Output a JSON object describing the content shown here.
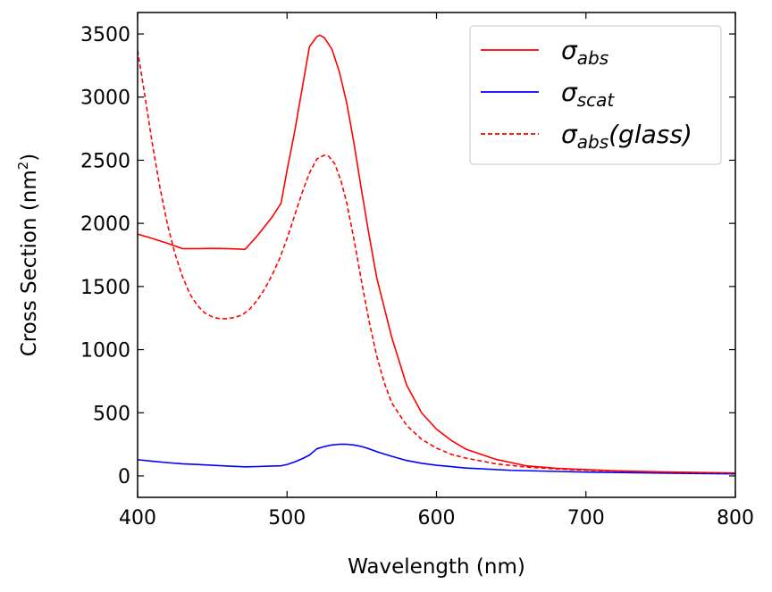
{
  "chart_data": {
    "type": "line",
    "xlabel": "Wavelength (nm)",
    "ylabel": {
      "main": "Cross Section (nm",
      "sup": "2",
      "close": ")"
    },
    "xlim": [
      400,
      800
    ],
    "ylim": [
      -170,
      3670
    ],
    "xticks": [
      400,
      500,
      600,
      700,
      800
    ],
    "yticks": [
      0,
      500,
      1000,
      1500,
      2000,
      2500,
      3000,
      3500
    ],
    "grid": false,
    "legend_position": "top-right",
    "series": [
      {
        "name": {
          "base": "σ",
          "sub": "abs",
          "suffix": ""
        },
        "color": "#ff0000",
        "dash": "solid",
        "x": [
          400,
          410,
          420,
          430,
          440,
          450,
          460,
          472,
          480,
          490,
          496,
          500,
          505,
          510,
          515,
          520,
          522,
          525,
          530,
          535,
          540,
          545,
          550,
          555,
          560,
          570,
          580,
          590,
          600,
          610,
          620,
          640,
          660,
          680,
          700,
          720,
          750,
          800
        ],
        "y": [
          1915,
          1880,
          1842,
          1800,
          1800,
          1802,
          1800,
          1795,
          1900,
          2050,
          2160,
          2420,
          2720,
          3060,
          3400,
          3480,
          3490,
          3470,
          3380,
          3200,
          2950,
          2620,
          2250,
          1900,
          1570,
          1100,
          720,
          500,
          370,
          280,
          210,
          130,
          80,
          60,
          50,
          40,
          32,
          22
        ]
      },
      {
        "name": {
          "base": "σ",
          "sub": "scat",
          "suffix": ""
        },
        "color": "#0000ff",
        "dash": "solid",
        "x": [
          400,
          410,
          420,
          430,
          440,
          450,
          460,
          472,
          480,
          490,
          496,
          500,
          505,
          510,
          515,
          520,
          525,
          530,
          535,
          540,
          545,
          550,
          555,
          560,
          570,
          580,
          590,
          600,
          620,
          650,
          700,
          750,
          800
        ],
        "y": [
          128,
          116,
          105,
          96,
          90,
          84,
          78,
          72,
          74,
          78,
          80,
          90,
          110,
          135,
          165,
          215,
          232,
          245,
          250,
          250,
          244,
          232,
          214,
          192,
          155,
          122,
          100,
          84,
          62,
          44,
          30,
          22,
          16
        ]
      },
      {
        "name": {
          "base": "σ",
          "sub": "abs",
          "suffix": "(glass)"
        },
        "color": "#ff0000",
        "dash": "dashed",
        "x": [
          400,
          405,
          410,
          415,
          420,
          425,
          430,
          435,
          440,
          445,
          450,
          455,
          460,
          465,
          470,
          475,
          480,
          485,
          490,
          495,
          500,
          505,
          510,
          515,
          520,
          525,
          528,
          532,
          536,
          540,
          545,
          550,
          555,
          560,
          565,
          570,
          580,
          590,
          600,
          610,
          620,
          640,
          660,
          680,
          700,
          720,
          750,
          800
        ],
        "y": [
          3370,
          3000,
          2620,
          2280,
          1990,
          1760,
          1580,
          1440,
          1350,
          1290,
          1260,
          1245,
          1245,
          1255,
          1275,
          1320,
          1390,
          1480,
          1590,
          1720,
          1880,
          2060,
          2240,
          2400,
          2510,
          2540,
          2530,
          2470,
          2340,
          2160,
          1860,
          1530,
          1220,
          950,
          740,
          580,
          400,
          290,
          220,
          170,
          140,
          95,
          70,
          55,
          45,
          38,
          30,
          22
        ]
      }
    ]
  }
}
